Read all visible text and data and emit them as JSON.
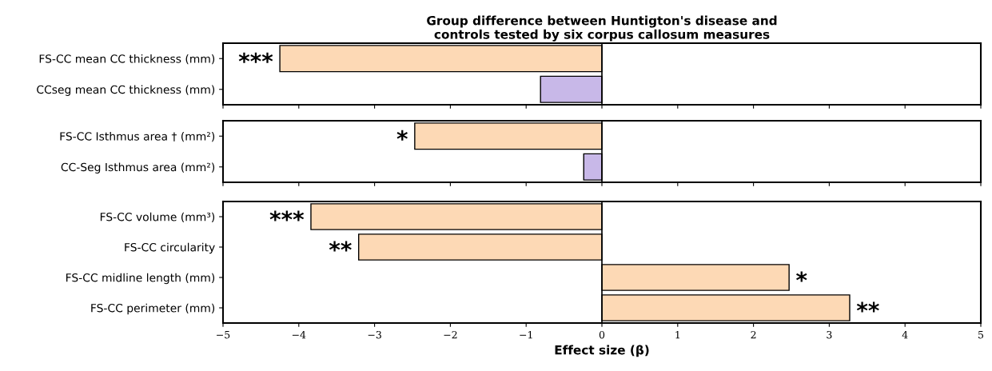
{
  "chart_data": [
    {
      "type": "bar",
      "orientation": "horizontal",
      "title": "Group difference between Huntigton's disease and\ncontrols tested by six corpus callosum measures",
      "categories": [
        "FS-CC mean CC thickness (mm)",
        "CCseg mean CC thickness (mm)"
      ],
      "values": [
        -4.25,
        -0.81
      ],
      "colors": [
        "#fdd9b5",
        "#c8b8e8"
      ],
      "xlim": [
        -5,
        5
      ],
      "xticks": [
        -5,
        -4,
        -3,
        -2,
        -1,
        0,
        1,
        2,
        3,
        4,
        5
      ],
      "tick_labels": "y",
      "ref_lines": [
        {
          "axis": "x",
          "value": 0,
          "color": "#000000"
        }
      ],
      "annotations": [
        {
          "text": "***",
          "x": -4.25,
          "y": "FS-CC mean CC thickness (mm)"
        }
      ]
    },
    {
      "type": "bar",
      "orientation": "horizontal",
      "categories": [
        "FS-CC Isthmus area † (mm²)",
        "CC-Seg Isthmus area (mm²)"
      ],
      "values": [
        -2.47,
        -0.24
      ],
      "colors": [
        "#fdd9b5",
        "#c8b8e8"
      ],
      "xlim": [
        -5,
        5
      ],
      "xticks": [
        -5,
        -4,
        -3,
        -2,
        -1,
        0,
        1,
        2,
        3,
        4,
        5
      ],
      "tick_labels": "y",
      "ref_lines": [
        {
          "axis": "x",
          "value": 0,
          "color": "#000000"
        }
      ],
      "annotations": [
        {
          "text": "*",
          "x": -2.47,
          "y": "FS-CC Isthmus area † (mm²)"
        }
      ]
    },
    {
      "type": "bar",
      "orientation": "horizontal",
      "xlabel": "Effect size (β)",
      "categories": [
        "FS-CC volume (mm³)",
        "FS-CC circularity",
        "FS-CC midline length (mm)",
        "FS-CC perimeter (mm)"
      ],
      "values": [
        -3.84,
        -3.21,
        2.47,
        3.27
      ],
      "colors": [
        "#fdd9b5",
        "#fdd9b5",
        "#fdd9b5",
        "#fdd9b5"
      ],
      "xlim": [
        -5,
        5
      ],
      "xticks": [
        {
          "value": -5,
          "label": "−5"
        },
        {
          "value": -4,
          "label": "−4"
        },
        {
          "value": -3,
          "label": "−3"
        },
        {
          "value": -2,
          "label": "−2"
        },
        {
          "value": -1,
          "label": "−1"
        },
        0,
        1,
        2,
        3,
        4,
        5
      ],
      "ref_lines": [
        {
          "axis": "x",
          "value": 0,
          "color": "#000000"
        }
      ],
      "annotations": [
        {
          "text": "***",
          "x": -3.84,
          "y": "FS-CC volume (mm³)"
        },
        {
          "text": "**",
          "x": -3.21,
          "y": "FS-CC circularity"
        },
        {
          "text": "*",
          "x": 2.47,
          "y": "FS-CC midline length (mm)"
        },
        {
          "text": "**",
          "x": 3.27,
          "y": "FS-CC perimeter (mm)"
        }
      ]
    }
  ]
}
